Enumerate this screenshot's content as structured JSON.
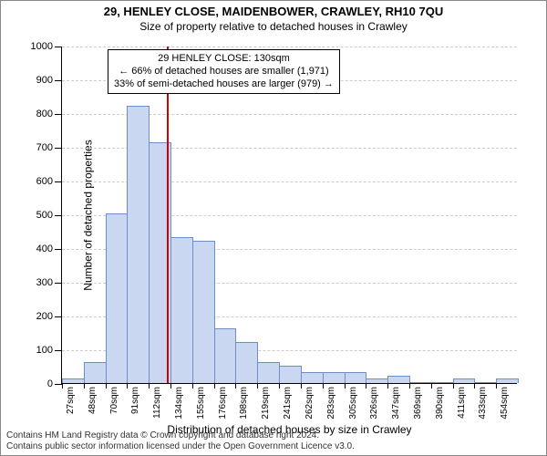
{
  "title_top": "29, HENLEY CLOSE, MAIDENBOWER, CRAWLEY, RH10 7QU",
  "title_sub": "Size of property relative to detached houses in Crawley",
  "y_axis_label": "Number of detached properties",
  "x_axis_label": "Distribution of detached houses by size in Crawley",
  "attribution_line1": "Contains HM Land Registry data © Crown copyright and database right 2024.",
  "attribution_line2": "Contains public sector information licensed under the Open Government Licence v3.0.",
  "callout": {
    "line1": "29 HENLEY CLOSE: 130sqm",
    "line2": "← 66% of detached houses are smaller (1,971)",
    "line3": "33% of semi-detached houses are larger (979) →"
  },
  "chart": {
    "type": "histogram",
    "y": {
      "min": 0,
      "max": 1000,
      "step": 100
    },
    "bar_fill": "#c9d7f0",
    "bar_stroke": "#6e8ec9",
    "marker_color": "#d00000",
    "marker_value_sqm": 130,
    "bin_start": 27,
    "bin_width": 21.35,
    "bars": [
      10,
      60,
      500,
      820,
      710,
      430,
      420,
      160,
      120,
      60,
      50,
      30,
      30,
      30,
      10,
      20,
      0,
      0,
      10,
      0,
      10
    ],
    "x_tick_labels": [
      "27sqm",
      "48sqm",
      "70sqm",
      "91sqm",
      "112sqm",
      "134sqm",
      "155sqm",
      "176sqm",
      "198sqm",
      "219sqm",
      "241sqm",
      "262sqm",
      "283sqm",
      "305sqm",
      "326sqm",
      "347sqm",
      "369sqm",
      "390sqm",
      "411sqm",
      "433sqm",
      "454sqm"
    ]
  },
  "colors": {
    "background": "#ffffff",
    "grid": "#cccccc",
    "axis": "#000000",
    "text": "#000000"
  },
  "fonts": {
    "base_pt": 12,
    "title_pt": 13,
    "tick_pt": 10
  }
}
